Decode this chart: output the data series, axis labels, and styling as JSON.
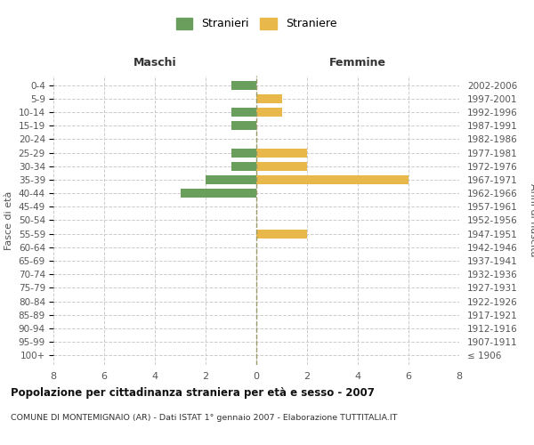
{
  "age_groups": [
    "100+",
    "95-99",
    "90-94",
    "85-89",
    "80-84",
    "75-79",
    "70-74",
    "65-69",
    "60-64",
    "55-59",
    "50-54",
    "45-49",
    "40-44",
    "35-39",
    "30-34",
    "25-29",
    "20-24",
    "15-19",
    "10-14",
    "5-9",
    "0-4"
  ],
  "birth_years": [
    "≤ 1906",
    "1907-1911",
    "1912-1916",
    "1917-1921",
    "1922-1926",
    "1927-1931",
    "1932-1936",
    "1937-1941",
    "1942-1946",
    "1947-1951",
    "1952-1956",
    "1957-1961",
    "1962-1966",
    "1967-1971",
    "1972-1976",
    "1977-1981",
    "1982-1986",
    "1987-1991",
    "1992-1996",
    "1997-2001",
    "2002-2006"
  ],
  "males": [
    0,
    0,
    0,
    0,
    0,
    0,
    0,
    0,
    0,
    0,
    0,
    0,
    3,
    2,
    1,
    1,
    0,
    1,
    1,
    0,
    1
  ],
  "females": [
    0,
    0,
    0,
    0,
    0,
    0,
    0,
    0,
    0,
    2,
    0,
    0,
    0,
    6,
    2,
    2,
    0,
    0,
    1,
    1,
    0
  ],
  "male_color": "#6a9e5c",
  "female_color": "#e8b84b",
  "background_color": "#ffffff",
  "grid_color": "#cccccc",
  "title": "Popolazione per cittadinanza straniera per età e sesso - 2007",
  "subtitle": "COMUNE DI MONTEMIGNAIO (AR) - Dati ISTAT 1° gennaio 2007 - Elaborazione TUTTITALIA.IT",
  "xlabel_left": "Maschi",
  "xlabel_right": "Femmine",
  "ylabel_left": "Fasce di età",
  "ylabel_right": "Anni di nascita",
  "legend_male": "Stranieri",
  "legend_female": "Straniere",
  "xlim": 8
}
